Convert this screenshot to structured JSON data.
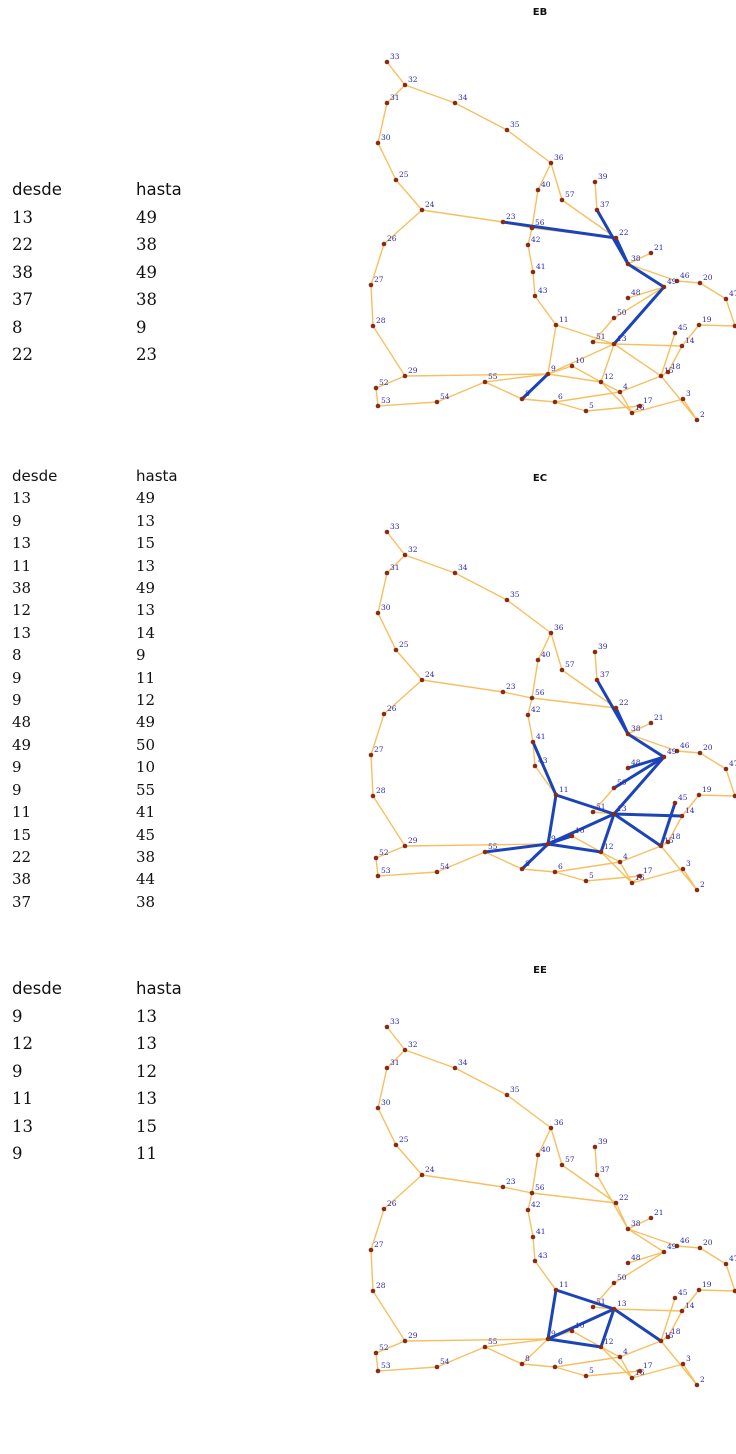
{
  "tables": [
    {
      "header": [
        "desde",
        "hasta"
      ],
      "rows": [
        [
          "13",
          "49"
        ],
        [
          "22",
          "38"
        ],
        [
          "38",
          "49"
        ],
        [
          "37",
          "38"
        ],
        [
          "8",
          "9"
        ],
        [
          "22",
          "23"
        ]
      ]
    },
    {
      "header": [
        "desde",
        "hasta"
      ],
      "rows": [
        [
          "13",
          "49"
        ],
        [
          "9",
          "13"
        ],
        [
          "13",
          "15"
        ],
        [
          "11",
          "13"
        ],
        [
          "38",
          "49"
        ],
        [
          "12",
          "13"
        ],
        [
          "13",
          "14"
        ],
        [
          "8",
          "9"
        ],
        [
          "9",
          "11"
        ],
        [
          "9",
          "12"
        ],
        [
          "48",
          "49"
        ],
        [
          "49",
          "50"
        ],
        [
          "9",
          "10"
        ],
        [
          "9",
          "55"
        ],
        [
          "11",
          "41"
        ],
        [
          "15",
          "45"
        ],
        [
          "22",
          "38"
        ],
        [
          "38",
          "44"
        ],
        [
          "37",
          "38"
        ]
      ]
    },
    {
      "header": [
        "desde",
        "hasta"
      ],
      "rows": [
        [
          "9",
          "13"
        ],
        [
          "12",
          "13"
        ],
        [
          "9",
          "12"
        ],
        [
          "11",
          "13"
        ],
        [
          "13",
          "15"
        ],
        [
          "9",
          "11"
        ]
      ]
    }
  ],
  "graphs": [
    {
      "title": "EB",
      "highlighted": [
        [
          "13",
          "49"
        ],
        [
          "22",
          "38"
        ],
        [
          "38",
          "49"
        ],
        [
          "37",
          "38"
        ],
        [
          "8",
          "9"
        ],
        [
          "22",
          "23"
        ]
      ]
    },
    {
      "title": "EC",
      "highlighted": [
        [
          "13",
          "49"
        ],
        [
          "9",
          "13"
        ],
        [
          "13",
          "15"
        ],
        [
          "11",
          "13"
        ],
        [
          "38",
          "49"
        ],
        [
          "12",
          "13"
        ],
        [
          "13",
          "14"
        ],
        [
          "8",
          "9"
        ],
        [
          "9",
          "11"
        ],
        [
          "9",
          "12"
        ],
        [
          "48",
          "49"
        ],
        [
          "49",
          "50"
        ],
        [
          "9",
          "10"
        ],
        [
          "9",
          "55"
        ],
        [
          "11",
          "41"
        ],
        [
          "15",
          "45"
        ],
        [
          "22",
          "38"
        ],
        [
          "38",
          "44"
        ],
        [
          "37",
          "38"
        ]
      ]
    },
    {
      "title": "EE",
      "highlighted": [
        [
          "9",
          "13"
        ],
        [
          "12",
          "13"
        ],
        [
          "9",
          "12"
        ],
        [
          "11",
          "13"
        ],
        [
          "13",
          "15"
        ],
        [
          "9",
          "11"
        ]
      ]
    }
  ],
  "network": {
    "nodes": [
      "1",
      "2",
      "3",
      "4",
      "5",
      "6",
      "8",
      "9",
      "10",
      "11",
      "12",
      "13",
      "14",
      "15",
      "16",
      "17",
      "18",
      "19",
      "20",
      "21",
      "22",
      "23",
      "24",
      "25",
      "26",
      "27",
      "28",
      "29",
      "30",
      "31",
      "32",
      "33",
      "34",
      "35",
      "36",
      "37",
      "38",
      "39",
      "40",
      "41",
      "42",
      "43",
      "44",
      "45",
      "46",
      "47",
      "48",
      "49",
      "50",
      "51",
      "52",
      "53",
      "54",
      "55",
      "56",
      "57"
    ],
    "edges": [
      [
        "33",
        "32"
      ],
      [
        "32",
        "31"
      ],
      [
        "32",
        "34"
      ],
      [
        "34",
        "35"
      ],
      [
        "35",
        "36"
      ],
      [
        "31",
        "30"
      ],
      [
        "30",
        "25"
      ],
      [
        "25",
        "24"
      ],
      [
        "24",
        "26"
      ],
      [
        "26",
        "27"
      ],
      [
        "27",
        "28"
      ],
      [
        "28",
        "29"
      ],
      [
        "29",
        "52"
      ],
      [
        "52",
        "53"
      ],
      [
        "53",
        "54"
      ],
      [
        "54",
        "55"
      ],
      [
        "55",
        "8"
      ],
      [
        "24",
        "23"
      ],
      [
        "23",
        "56"
      ],
      [
        "56",
        "22"
      ],
      [
        "22",
        "38"
      ],
      [
        "36",
        "40"
      ],
      [
        "40",
        "56"
      ],
      [
        "36",
        "57"
      ],
      [
        "57",
        "22"
      ],
      [
        "37",
        "39"
      ],
      [
        "37",
        "38"
      ],
      [
        "56",
        "42"
      ],
      [
        "42",
        "41"
      ],
      [
        "41",
        "43"
      ],
      [
        "43",
        "11"
      ],
      [
        "11",
        "9"
      ],
      [
        "9",
        "8"
      ],
      [
        "8",
        "6"
      ],
      [
        "6",
        "5"
      ],
      [
        "5",
        "17"
      ],
      [
        "17",
        "16"
      ],
      [
        "9",
        "10"
      ],
      [
        "10",
        "12"
      ],
      [
        "12",
        "16"
      ],
      [
        "9",
        "13"
      ],
      [
        "13",
        "12"
      ],
      [
        "13",
        "51"
      ],
      [
        "51",
        "50"
      ],
      [
        "50",
        "49"
      ],
      [
        "49",
        "38"
      ],
      [
        "13",
        "14"
      ],
      [
        "14",
        "18"
      ],
      [
        "18",
        "15"
      ],
      [
        "15",
        "45"
      ],
      [
        "45",
        "44"
      ],
      [
        "44",
        "38"
      ],
      [
        "44",
        "46"
      ],
      [
        "46",
        "20"
      ],
      [
        "20",
        "47"
      ],
      [
        "47",
        "1"
      ],
      [
        "1",
        "19"
      ],
      [
        "19",
        "14"
      ],
      [
        "38",
        "21"
      ],
      [
        "38",
        "46"
      ],
      [
        "15",
        "4"
      ],
      [
        "4",
        "16"
      ],
      [
        "16",
        "3"
      ],
      [
        "3",
        "2"
      ],
      [
        "15",
        "2"
      ],
      [
        "29",
        "9"
      ],
      [
        "6",
        "4"
      ],
      [
        "12",
        "4"
      ],
      [
        "44",
        "48"
      ],
      [
        "48",
        "49"
      ],
      [
        "13",
        "15"
      ],
      [
        "9",
        "55"
      ],
      [
        "11",
        "13"
      ],
      [
        "9",
        "12"
      ]
    ]
  }
}
